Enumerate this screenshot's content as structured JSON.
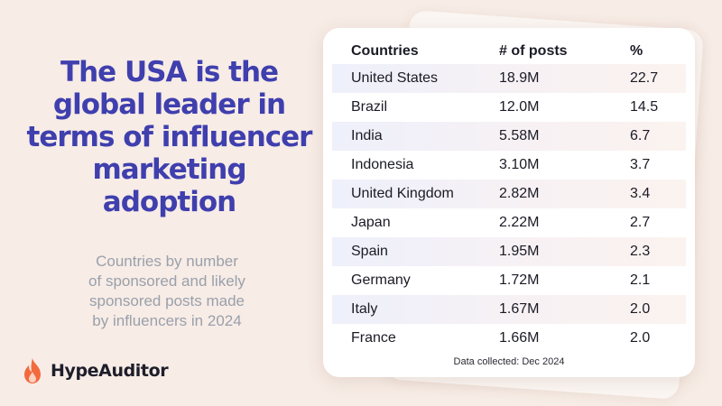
{
  "headline": [
    "The USA is the",
    "global leader in",
    "terms of influencer",
    "marketing",
    "adoption"
  ],
  "subhead": [
    "Countries by number",
    "of sponsored and likely",
    "sponsored posts made",
    "by influencers in 2024"
  ],
  "brand": {
    "name": "HypeAuditor",
    "logo_icon": "flame-icon",
    "logo_color": "#f26a3d"
  },
  "colors": {
    "headline": "#3f3fae",
    "background": "#f7ece6",
    "row_highlight": "#eef0fb"
  },
  "chart_data": {
    "type": "table",
    "columns": [
      "Countries",
      "# of posts",
      "%"
    ],
    "rows": [
      [
        "United States",
        "18.9M",
        "22.7"
      ],
      [
        "Brazil",
        "12.0M",
        "14.5"
      ],
      [
        "India",
        "5.58M",
        "6.7"
      ],
      [
        "Indonesia",
        "3.10M",
        "3.7"
      ],
      [
        "United Kingdom",
        "2.82M",
        "3.4"
      ],
      [
        "Japan",
        "2.22M",
        "2.7"
      ],
      [
        "Spain",
        "1.95M",
        "2.3"
      ],
      [
        "Germany",
        "1.72M",
        "2.1"
      ],
      [
        "Italy",
        "1.67M",
        "2.0"
      ],
      [
        "France",
        "1.66M",
        "2.0"
      ]
    ],
    "footnote": "Data collected:  Dec 2024"
  }
}
